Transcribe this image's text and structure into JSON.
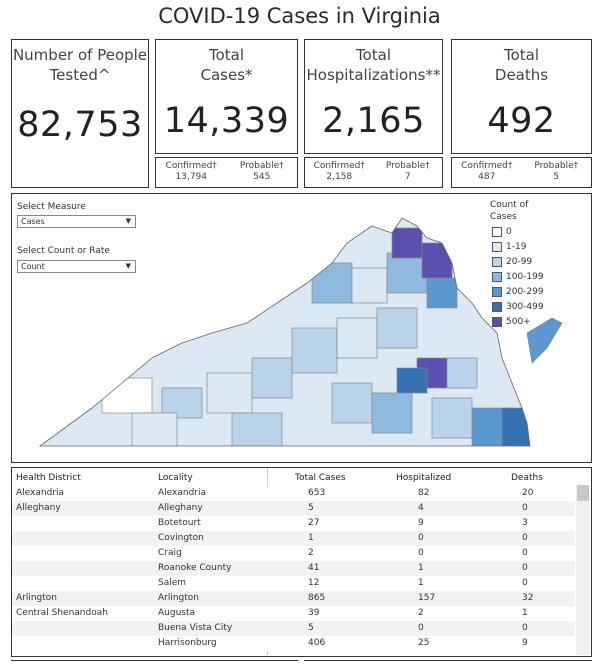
{
  "title": "COVID-19 Cases in Virginia",
  "cards": [
    {
      "label1": "Number of People",
      "label2": "Tested^",
      "value": "82,753"
    },
    {
      "label1": "Total",
      "label2": "Cases*",
      "value": "14,339",
      "confirmed_label": "Confirmed†",
      "confirmed": "13,794",
      "probable_label": "Probable†",
      "probable": "545"
    },
    {
      "label1": "Total",
      "label2": "Hospitalizations**",
      "value": "2,165",
      "confirmed_label": "Confirmed†",
      "confirmed": "2,158",
      "probable_label": "Probable†",
      "probable": "7"
    },
    {
      "label1": "Total",
      "label2": "Deaths",
      "value": "492",
      "confirmed_label": "Confirmed†",
      "confirmed": "487",
      "probable_label": "Probable†",
      "probable": "5"
    }
  ],
  "filters": {
    "measure_label": "Select Measure",
    "measure_value": "Cases",
    "count_label": "Select Count or Rate",
    "count_value": "Count"
  },
  "legend": {
    "title1": "Count of",
    "title2": "Cases",
    "items": [
      {
        "label": "0",
        "color": "#ffffff"
      },
      {
        "label": "1-19",
        "color": "#dce9f5"
      },
      {
        "label": "20-99",
        "color": "#b9d4ea"
      },
      {
        "label": "100-199",
        "color": "#8fb9df"
      },
      {
        "label": "200-299",
        "color": "#5a98cf"
      },
      {
        "label": "300-499",
        "color": "#3671b3"
      },
      {
        "label": "500+",
        "color": "#5b4fb0"
      }
    ]
  },
  "table": {
    "headers": [
      "Health District",
      "Locality",
      "Total Cases",
      "Hospitalized",
      "Deaths"
    ],
    "rows": [
      {
        "district": "Alexandria",
        "locality": "Alexandria",
        "cases": "653",
        "hosp": "82",
        "deaths": "20"
      },
      {
        "district": "Alleghany",
        "locality": "Alleghany",
        "cases": "5",
        "hosp": "4",
        "deaths": "0"
      },
      {
        "district": "",
        "locality": "Botetourt",
        "cases": "27",
        "hosp": "9",
        "deaths": "3"
      },
      {
        "district": "",
        "locality": "Covington",
        "cases": "1",
        "hosp": "0",
        "deaths": "0"
      },
      {
        "district": "",
        "locality": "Craig",
        "cases": "2",
        "hosp": "0",
        "deaths": "0"
      },
      {
        "district": "",
        "locality": "Roanoke County",
        "cases": "41",
        "hosp": "1",
        "deaths": "0"
      },
      {
        "district": "",
        "locality": "Salem",
        "cases": "12",
        "hosp": "1",
        "deaths": "0"
      },
      {
        "district": "Arlington",
        "locality": "Arlington",
        "cases": "865",
        "hosp": "157",
        "deaths": "32"
      },
      {
        "district": "Central Shenandoah",
        "locality": "Augusta",
        "cases": "39",
        "hosp": "2",
        "deaths": "1"
      },
      {
        "district": "",
        "locality": "Buena Vista City",
        "cases": "5",
        "hosp": "0",
        "deaths": "0"
      },
      {
        "district": "",
        "locality": "Harrisonburg",
        "cases": "406",
        "hosp": "25",
        "deaths": "9"
      }
    ]
  }
}
